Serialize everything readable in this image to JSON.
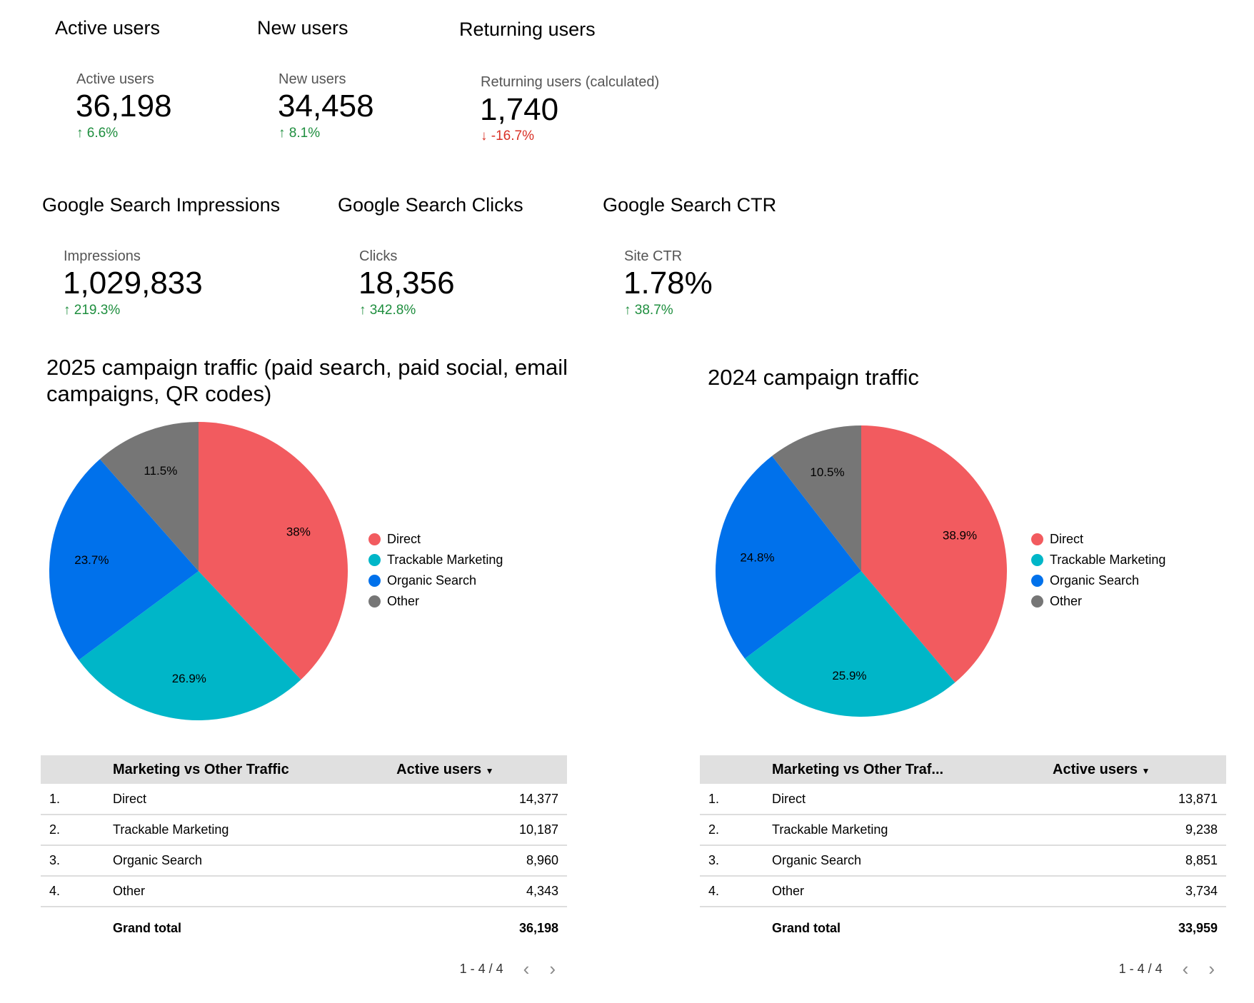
{
  "kpis": [
    {
      "title": "Active users",
      "label": "Active users",
      "value": "36,198",
      "delta": "6.6%",
      "dir": "up"
    },
    {
      "title": "New users",
      "label": "New users",
      "value": "34,458",
      "delta": "8.1%",
      "dir": "up"
    },
    {
      "title": "Returning users",
      "label": "Returning users (calculated)",
      "value": "1,740",
      "delta": "-16.7%",
      "dir": "down"
    },
    {
      "title": "Google Search Impressions",
      "label": "Impressions",
      "value": "1,029,833",
      "delta": "219.3%",
      "dir": "up"
    },
    {
      "title": "Google Search Clicks",
      "label": "Clicks",
      "value": "18,356",
      "delta": "342.8%",
      "dir": "up"
    },
    {
      "title": "Google Search CTR",
      "label": "Site CTR",
      "value": "1.78%",
      "delta": "38.7%",
      "dir": "up"
    }
  ],
  "colors": {
    "Direct": "#f25b5f",
    "Trackable Marketing": "#00b6c8",
    "Organic Search": "#0071eb",
    "Other": "#767676",
    "up": "#1e8e3e",
    "down": "#d93025"
  },
  "chart_data": [
    {
      "type": "pie",
      "title": "2025 campaign traffic (paid search, paid social, email campaigns, QR codes)",
      "legend": "right",
      "labels": [
        "Direct",
        "Trackable Marketing",
        "Organic Search",
        "Other"
      ],
      "values": [
        38,
        26.9,
        23.7,
        11.5
      ],
      "data_labels": [
        "38%",
        "26.9%",
        "23.7%",
        "11.5%"
      ]
    },
    {
      "type": "pie",
      "title": "2024 campaign traffic",
      "legend": "right",
      "labels": [
        "Direct",
        "Trackable Marketing",
        "Organic Search",
        "Other"
      ],
      "values": [
        38.9,
        25.9,
        24.8,
        10.5
      ],
      "data_labels": [
        "38.9%",
        "25.9%",
        "24.8%",
        "10.5%"
      ]
    }
  ],
  "tables": [
    {
      "dim_header": "Marketing vs Other Traffic",
      "metric_header": "Active users",
      "rows": [
        [
          "1.",
          "Direct",
          "14,377"
        ],
        [
          "2.",
          "Trackable Marketing",
          "10,187"
        ],
        [
          "3.",
          "Organic Search",
          "8,960"
        ],
        [
          "4.",
          "Other",
          "4,343"
        ]
      ],
      "total_label": "Grand total",
      "total": "36,198",
      "pager": "1 - 4 / 4"
    },
    {
      "dim_header": "Marketing vs Other Traf...",
      "metric_header": "Active users",
      "rows": [
        [
          "1.",
          "Direct",
          "13,871"
        ],
        [
          "2.",
          "Trackable Marketing",
          "9,238"
        ],
        [
          "3.",
          "Organic Search",
          "8,851"
        ],
        [
          "4.",
          "Other",
          "3,734"
        ]
      ],
      "total_label": "Grand total",
      "total": "33,959",
      "pager": "1 - 4 / 4"
    }
  ]
}
